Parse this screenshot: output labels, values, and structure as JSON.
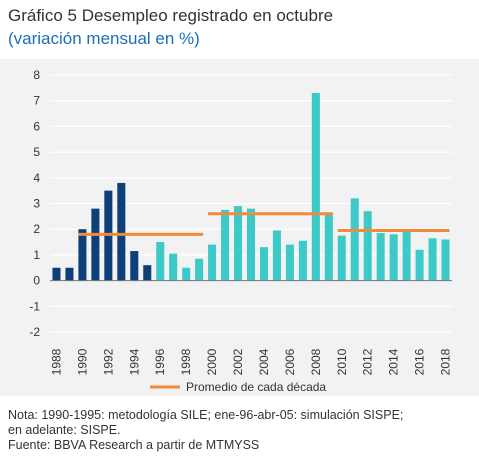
{
  "header": {
    "title": "Gráfico 5 Desempleo registrado en octubre",
    "subtitle": "(variación mensual en %)"
  },
  "footnote": {
    "line1": "Nota: 1990-1995: metodología SILE; ene-96-abr-05: simulación SISPE;",
    "line2": "en adelante: SISPE.",
    "line3": "Fuente: BBVA Research a partir de MTMYSS"
  },
  "colors": {
    "series_a": "#0f3f78",
    "series_b": "#3ec9c9",
    "average": "#f08a3c"
  },
  "chart_data": {
    "type": "bar",
    "title": "",
    "xlabel": "",
    "ylabel": "",
    "ylim": [
      -2,
      8
    ],
    "yticks": [
      -2,
      -1,
      0,
      1,
      2,
      3,
      4,
      5,
      6,
      7,
      8
    ],
    "grid": true,
    "categories": [
      1988,
      1989,
      1990,
      1991,
      1992,
      1993,
      1994,
      1995,
      1996,
      1997,
      1998,
      1999,
      2000,
      2001,
      2002,
      2003,
      2004,
      2005,
      2006,
      2007,
      2008,
      2009,
      2010,
      2011,
      2012,
      2013,
      2014,
      2015,
      2016,
      2017,
      2018
    ],
    "xtick_labels": [
      "1988",
      "1990",
      "1992",
      "1994",
      "1996",
      "1998",
      "2000",
      "2002",
      "2004",
      "2006",
      "2008",
      "2010",
      "2012",
      "2014",
      "2016",
      "2018"
    ],
    "values": [
      0.5,
      0.5,
      2.0,
      2.8,
      3.5,
      3.8,
      1.15,
      0.6,
      1.5,
      1.05,
      0.5,
      0.85,
      1.4,
      2.75,
      2.9,
      2.8,
      1.3,
      1.95,
      1.4,
      1.55,
      7.3,
      2.6,
      1.75,
      3.2,
      2.7,
      1.85,
      1.8,
      1.9,
      1.2,
      1.65,
      1.6
    ],
    "bar_colors_by_period": [
      {
        "from": 1988,
        "to": 1995,
        "color": "#0f3f78"
      },
      {
        "from": 1996,
        "to": 2018,
        "color": "#3ec9c9"
      }
    ],
    "averages": [
      {
        "from": 1990,
        "to": 1999,
        "value": 1.8
      },
      {
        "from": 2000,
        "to": 2009,
        "value": 2.6
      },
      {
        "from": 2010,
        "to": 2018,
        "value": 1.95
      }
    ],
    "legend": {
      "label": "Promedio de cada década",
      "placement": "bottom"
    }
  }
}
